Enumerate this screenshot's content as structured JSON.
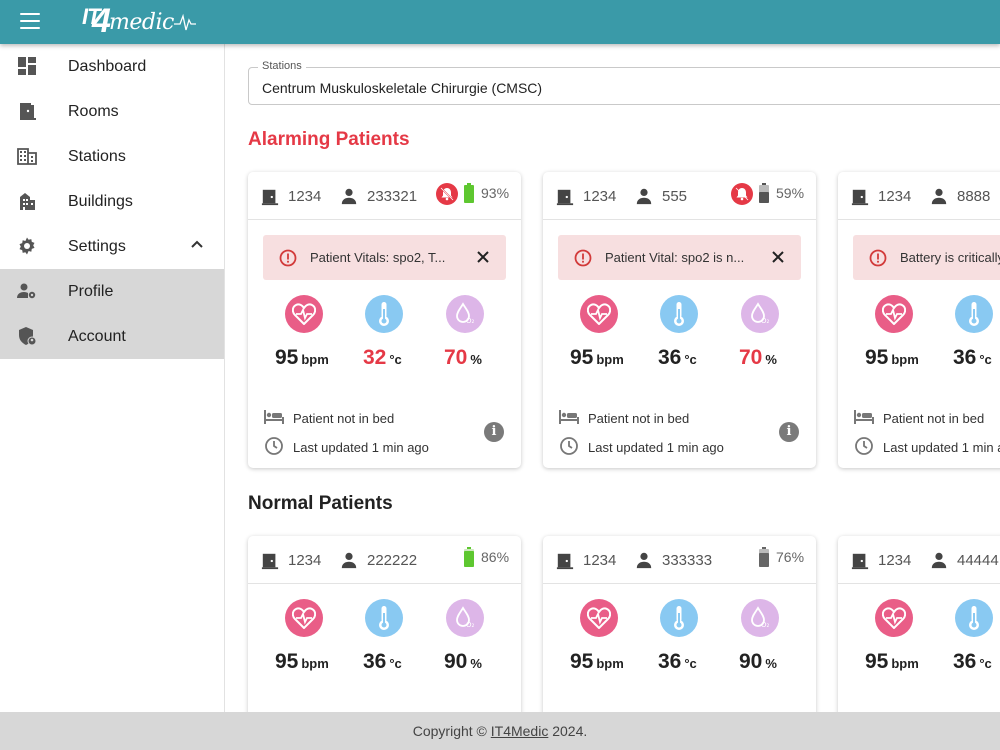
{
  "app": {
    "logo_text_it": "IT",
    "logo_text_4": "4",
    "logo_text_medic": "medic"
  },
  "sidebar": {
    "items": [
      {
        "label": "Dashboard",
        "icon": "dashboard-icon"
      },
      {
        "label": "Rooms",
        "icon": "door-icon"
      },
      {
        "label": "Stations",
        "icon": "station-building-icon"
      },
      {
        "label": "Buildings",
        "icon": "buildings-icon"
      },
      {
        "label": "Settings",
        "icon": "gear-icon"
      },
      {
        "label": "Profile",
        "icon": "person-gear-icon"
      },
      {
        "label": "Account",
        "icon": "shield-account-icon"
      }
    ]
  },
  "station": {
    "legend": "Stations",
    "value": "Centrum Muskuloskeletale Chirurgie (CMSC)"
  },
  "sections": {
    "alarming": "Alarming Patients",
    "normal": "Normal Patients"
  },
  "alarming": [
    {
      "room": "1234",
      "patient": "233321",
      "battery": "93%",
      "battery_level": 0.93,
      "battery_color": "#5ec730",
      "alert": "Patient Vitals: spo2, T...",
      "heart": "95",
      "heart_unit": "bpm",
      "temp": "32",
      "temp_unit": "°c",
      "spo2": "70",
      "spo2_unit": "%",
      "bed": "Patient not in bed",
      "updated": "Last updated 1 min ago"
    },
    {
      "room": "1234",
      "patient": "555",
      "battery": "59%",
      "battery_level": 0.59,
      "battery_color": "#555555",
      "alert": "Patient Vital: spo2 is n...",
      "heart": "95",
      "heart_unit": "bpm",
      "temp": "36",
      "temp_unit": "°c",
      "spo2": "70",
      "spo2_unit": "%",
      "bed": "Patient not in bed",
      "updated": "Last updated 1 min ago"
    },
    {
      "room": "1234",
      "patient": "8888",
      "alert": "Battery is critically",
      "heart": "95",
      "heart_unit": "bpm",
      "temp": "36",
      "temp_unit": "°c",
      "bed": "Patient not in bed",
      "updated": "Last updated 1 min a"
    }
  ],
  "normal": [
    {
      "room": "1234",
      "patient": "222222",
      "battery": "86%",
      "battery_level": 0.86,
      "battery_color": "#5ec730",
      "heart": "95",
      "heart_unit": "bpm",
      "temp": "36",
      "temp_unit": "°c",
      "spo2": "90",
      "spo2_unit": "%"
    },
    {
      "room": "1234",
      "patient": "333333",
      "battery": "76%",
      "battery_level": 0.76,
      "battery_color": "#666666",
      "heart": "95",
      "heart_unit": "bpm",
      "temp": "36",
      "temp_unit": "°c",
      "spo2": "90",
      "spo2_unit": "%"
    },
    {
      "room": "1234",
      "patient": "44444",
      "heart": "95",
      "heart_unit": "bpm",
      "temp": "36",
      "temp_unit": "°c"
    }
  ],
  "footer": {
    "prefix": "Copyright © ",
    "link": "IT4Medic",
    "suffix": " 2024."
  },
  "colors": {
    "topbar": "#3a9aa8",
    "alarm_red": "#e53946",
    "heart": "#e95d87",
    "temp": "#89c9f2",
    "spo2": "#ddb6e8"
  }
}
